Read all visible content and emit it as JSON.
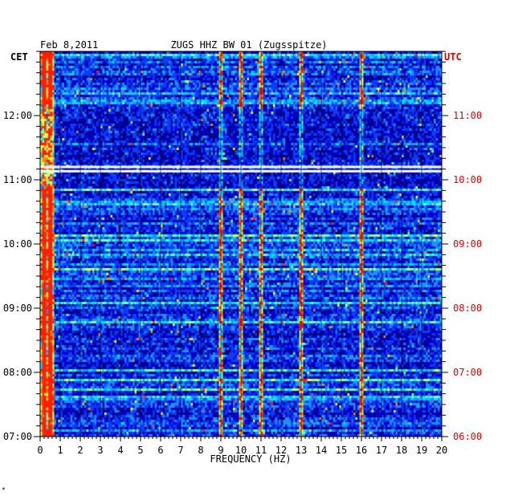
{
  "chart_data": {
    "type": "heatmap",
    "date_label": "Feb 8,2011",
    "title": "ZUGS HHZ BW 01 (Zugsspitze)",
    "xlabel": "FREQUENCY (HZ)",
    "x_ticks": [
      "0",
      "1",
      "2",
      "3",
      "4",
      "5",
      "6",
      "7",
      "8",
      "9",
      "10",
      "11",
      "12",
      "13",
      "14",
      "15",
      "16",
      "17",
      "18",
      "19",
      "20"
    ],
    "xlim": [
      0,
      20
    ],
    "left_axis_label": "CET",
    "right_axis_label": "UTC",
    "left_time_ticks": [
      "12:00",
      "11:00",
      "10:00",
      "09:00",
      "08:00",
      "07:00"
    ],
    "right_time_ticks": [
      "11:00",
      "10:00",
      "09:00",
      "08:00",
      "07:00",
      "06:00"
    ],
    "time_range_cet": [
      "07:00",
      "13:00"
    ],
    "grid": true,
    "colormap": [
      "#00007a",
      "#0000c8",
      "#0a3cff",
      "#1e90ff",
      "#00e0ff",
      "#7fffb0",
      "#ffff30",
      "#ff8a00",
      "#ff1e00"
    ],
    "colors": {
      "background_low": "#00007a",
      "left_axis_text": "#000000",
      "right_axis_text": "#e00000",
      "data_gap": "#ffffff"
    },
    "prominent_lines_hz": [
      0.2,
      0.5,
      9.0,
      10.0,
      11.0,
      13.0,
      16.0
    ],
    "data_gap_times_cet": [
      "11:08",
      "11:12"
    ],
    "footer_mark": "*"
  }
}
